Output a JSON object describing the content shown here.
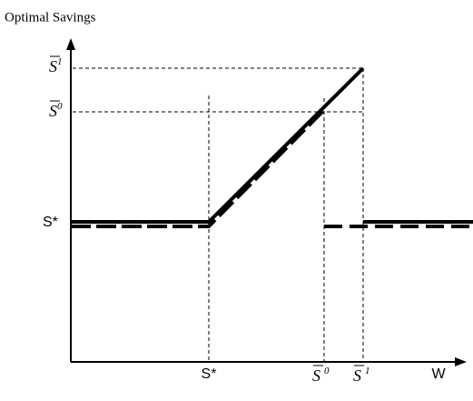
{
  "title": "Optimal Savings",
  "x_axis_label": "W",
  "y_labels": [
    {
      "symbol": "S",
      "superscript": "1"
    },
    {
      "symbol": "S",
      "superscript": "0"
    },
    {
      "symbol": "S*"
    }
  ],
  "x_labels": [
    {
      "symbol": "S*"
    },
    {
      "symbol": "S",
      "superscript": "0"
    },
    {
      "symbol": "S",
      "superscript": "1"
    }
  ]
}
